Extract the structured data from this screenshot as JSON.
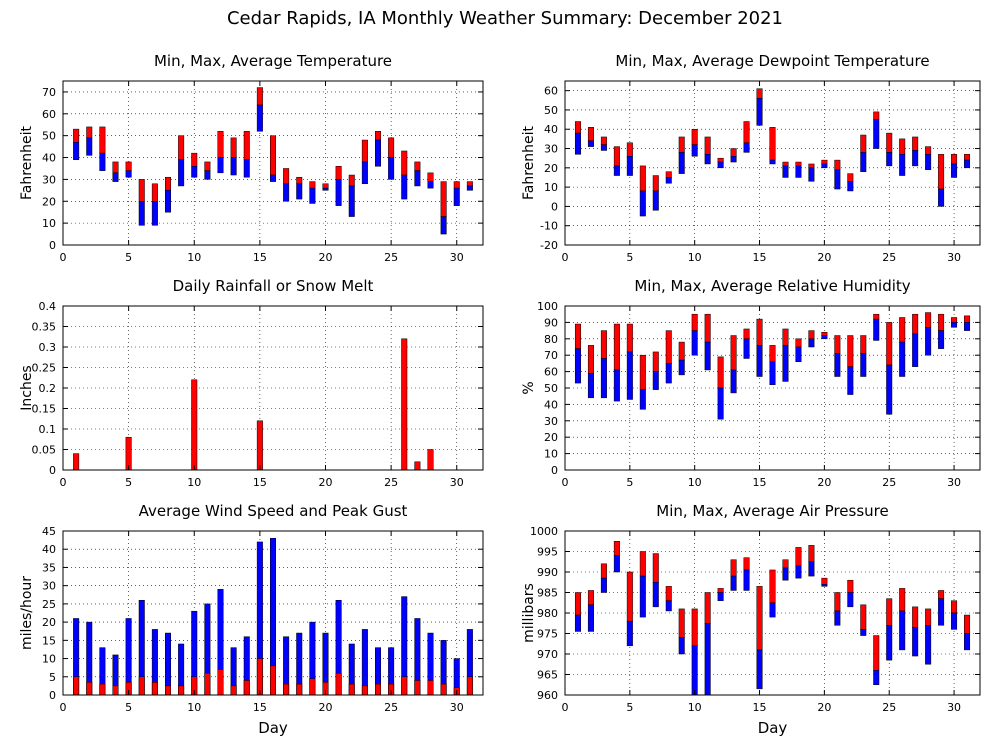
{
  "title": "Cedar Rapids, IA Monthly Weather Summary: December 2021",
  "colors": {
    "max_part": "#ff0000",
    "min_part": "#0000ff",
    "frame": "#000000",
    "grid": "#000000"
  },
  "chart_data": [
    {
      "id": "temp",
      "type": "bar",
      "variant": "floating-range",
      "title": "Min, Max, Average Temperature",
      "xlabel": "",
      "ylabel": "Fahrenheit",
      "xlim": [
        0,
        32
      ],
      "ylim": [
        0,
        75
      ],
      "yticks": [
        0,
        10,
        20,
        30,
        40,
        50,
        60,
        70
      ],
      "xticks": [
        0,
        5,
        10,
        15,
        20,
        25,
        30
      ],
      "grid": true,
      "series": [
        {
          "name": "max",
          "values": [
            53,
            54,
            54,
            38,
            38,
            30,
            28,
            31,
            50,
            42,
            38,
            52,
            49,
            52,
            72,
            50,
            35,
            31,
            29,
            28,
            36,
            32,
            48,
            52,
            49,
            43,
            38,
            33,
            29,
            29,
            29
          ]
        },
        {
          "name": "avg",
          "values": [
            47,
            49,
            42,
            33,
            34,
            20,
            20,
            25,
            39,
            36,
            34,
            40,
            40,
            39,
            64,
            32,
            28,
            28,
            26,
            26,
            30,
            27,
            38,
            48,
            40,
            32,
            34,
            29,
            13,
            26,
            27
          ]
        },
        {
          "name": "min",
          "values": [
            39,
            41,
            34,
            29,
            31,
            9,
            9,
            15,
            27,
            31,
            30,
            33,
            32,
            31,
            52,
            29,
            20,
            21,
            19,
            25,
            18,
            13,
            28,
            36,
            30,
            21,
            27,
            26,
            5,
            18,
            25
          ]
        }
      ]
    },
    {
      "id": "dewpoint",
      "type": "bar",
      "variant": "floating-range",
      "title": "Min, Max, Average Dewpoint Temperature",
      "xlabel": "",
      "ylabel": "Fahrenheit",
      "xlim": [
        0,
        32
      ],
      "ylim": [
        -20,
        65
      ],
      "yticks": [
        -20,
        -10,
        0,
        10,
        20,
        30,
        40,
        50,
        60
      ],
      "xticks": [
        0,
        5,
        10,
        15,
        20,
        25,
        30
      ],
      "grid": true,
      "series": [
        {
          "name": "max",
          "values": [
            44,
            41,
            36,
            31,
            33,
            21,
            16,
            18,
            36,
            40,
            36,
            25,
            30,
            44,
            61,
            41,
            23,
            23,
            22,
            24,
            24,
            17,
            37,
            49,
            38,
            35,
            36,
            31,
            27,
            27,
            27
          ]
        },
        {
          "name": "avg",
          "values": [
            38,
            34,
            32,
            21,
            26,
            8,
            8,
            15,
            28,
            32,
            27,
            23,
            26,
            33,
            56,
            24,
            21,
            21,
            20,
            22,
            19,
            13,
            28,
            45,
            28,
            27,
            29,
            27,
            9,
            22,
            24
          ]
        },
        {
          "name": "min",
          "values": [
            27,
            31,
            29,
            16,
            16,
            -5,
            -2,
            12,
            17,
            26,
            22,
            20,
            23,
            28,
            42,
            22,
            15,
            15,
            13,
            20,
            9,
            8,
            18,
            30,
            21,
            16,
            21,
            19,
            0,
            15,
            20
          ]
        }
      ]
    },
    {
      "id": "rain",
      "type": "bar",
      "title": "Daily Rainfall or Snow Melt",
      "xlabel": "",
      "ylabel": "Inches",
      "xlim": [
        0,
        32
      ],
      "ylim": [
        0,
        0.4
      ],
      "yticks": [
        0,
        0.05,
        0.1,
        0.15,
        0.2,
        0.25,
        0.3,
        0.35,
        0.4
      ],
      "ytick_labels": [
        "0",
        "0.05",
        "0.1",
        "0.15",
        "0.2",
        "0.25",
        "0.3",
        "0.35",
        "0.4"
      ],
      "xticks": [
        0,
        5,
        10,
        15,
        20,
        25,
        30
      ],
      "grid": true,
      "series": [
        {
          "name": "rainfall",
          "values": [
            0.04,
            0,
            0,
            0,
            0.08,
            0,
            0,
            0,
            0,
            0.22,
            0,
            0,
            0,
            0,
            0.12,
            0,
            0,
            0,
            0,
            0,
            0,
            0,
            0,
            0,
            0,
            0.32,
            0.02,
            0.05,
            0,
            0,
            0
          ]
        }
      ]
    },
    {
      "id": "humidity",
      "type": "bar",
      "variant": "floating-range",
      "title": "Min, Max, Average Relative Humidity",
      "xlabel": "",
      "ylabel": "%",
      "xlim": [
        0,
        32
      ],
      "ylim": [
        0,
        100
      ],
      "yticks": [
        0,
        10,
        20,
        30,
        40,
        50,
        60,
        70,
        80,
        90,
        100
      ],
      "xticks": [
        0,
        5,
        10,
        15,
        20,
        25,
        30
      ],
      "grid": true,
      "series": [
        {
          "name": "max",
          "values": [
            89,
            76,
            85,
            89,
            89,
            70,
            72,
            85,
            78,
            95,
            95,
            69,
            82,
            86,
            92,
            76,
            86,
            80,
            85,
            84,
            82,
            82,
            82,
            95,
            90,
            93,
            95,
            96,
            95,
            93,
            94
          ]
        },
        {
          "name": "avg",
          "values": [
            74,
            59,
            68,
            61,
            72,
            49,
            60,
            65,
            67,
            85,
            78,
            50,
            61,
            80,
            76,
            66,
            76,
            75,
            80,
            82,
            71,
            63,
            71,
            92,
            64,
            78,
            83,
            87,
            85,
            90,
            90
          ]
        },
        {
          "name": "min",
          "values": [
            53,
            44,
            44,
            42,
            43,
            37,
            49,
            53,
            58,
            70,
            61,
            31,
            47,
            68,
            57,
            52,
            54,
            66,
            75,
            80,
            57,
            46,
            57,
            79,
            34,
            57,
            63,
            70,
            74,
            87,
            85
          ]
        }
      ]
    },
    {
      "id": "wind",
      "type": "bar",
      "variant": "stacked-overlay",
      "title": "Average Wind Speed and Peak Gust",
      "xlabel": "Day",
      "ylabel": "miles/hour",
      "xlim": [
        0,
        32
      ],
      "ylim": [
        0,
        45
      ],
      "yticks": [
        0,
        5,
        10,
        15,
        20,
        25,
        30,
        35,
        40,
        45
      ],
      "xticks": [
        0,
        5,
        10,
        15,
        20,
        25,
        30
      ],
      "grid": true,
      "series": [
        {
          "name": "peak_gust",
          "values": [
            21,
            20,
            13,
            11,
            21,
            26,
            18,
            17,
            14,
            23,
            25,
            29,
            13,
            16,
            42,
            43,
            16,
            17,
            20,
            17,
            26,
            14,
            18,
            13,
            13,
            27,
            21,
            17,
            15,
            10,
            18
          ]
        },
        {
          "name": "avg_speed",
          "values": [
            5,
            3.5,
            3,
            2.5,
            3.5,
            5,
            3.5,
            2.5,
            2.5,
            5,
            6,
            7,
            2.5,
            4,
            10,
            8,
            3,
            3,
            4.5,
            3.5,
            6,
            3,
            2.5,
            3,
            3,
            5,
            4,
            4,
            3,
            2,
            5
          ]
        }
      ]
    },
    {
      "id": "pressure",
      "type": "bar",
      "variant": "floating-range",
      "title": "Min, Max, Average Air Pressure",
      "xlabel": "Day",
      "ylabel": "millibars",
      "xlim": [
        0,
        32
      ],
      "ylim": [
        960,
        1000
      ],
      "yticks": [
        960,
        965,
        970,
        975,
        980,
        985,
        990,
        995,
        1000
      ],
      "xticks": [
        0,
        5,
        10,
        15,
        20,
        25,
        30
      ],
      "grid": true,
      "series": [
        {
          "name": "max",
          "values": [
            985,
            985.5,
            992,
            997.5,
            990,
            995,
            994.5,
            986.5,
            981,
            981,
            985,
            986,
            993,
            993.5,
            986.5,
            990.5,
            993,
            996,
            996.5,
            988.5,
            985,
            988,
            982,
            974.5,
            983.5,
            986,
            981.5,
            981,
            985.5,
            983,
            979.5
          ]
        },
        {
          "name": "avg",
          "values": [
            979.5,
            982,
            988.5,
            994,
            978,
            989,
            987.5,
            983,
            974,
            972,
            977.5,
            985,
            989,
            990.5,
            971,
            982.5,
            991,
            991.5,
            992.5,
            987,
            980.5,
            985,
            976,
            966,
            977,
            980.5,
            976.5,
            977,
            983.5,
            980,
            975
          ]
        },
        {
          "name": "min",
          "values": [
            975.5,
            975.5,
            985,
            990,
            972,
            979,
            981.5,
            980.5,
            970,
            960,
            960,
            983,
            985.5,
            985.5,
            961.5,
            979,
            988,
            988.5,
            989,
            986.5,
            977,
            981.5,
            974.5,
            962.5,
            968.5,
            971,
            969.5,
            967.5,
            977,
            976,
            971
          ]
        }
      ]
    }
  ]
}
